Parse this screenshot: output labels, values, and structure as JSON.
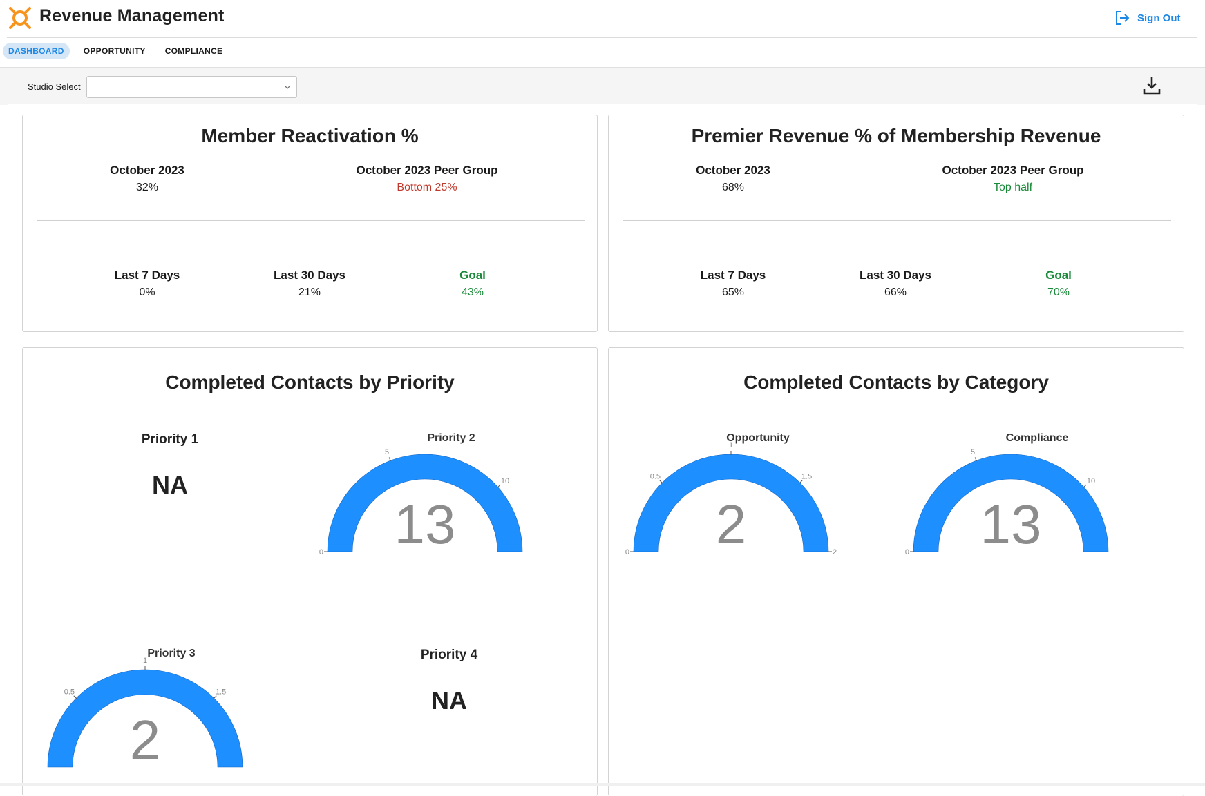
{
  "header": {
    "title": "Revenue Management",
    "sign_out": "Sign Out"
  },
  "tabs": [
    {
      "label": "DASHBOARD",
      "active": true
    },
    {
      "label": "OPPORTUNITY",
      "active": false
    },
    {
      "label": "COMPLIANCE",
      "active": false
    }
  ],
  "toolbar": {
    "studio_label": "Studio Select",
    "studio_value": ""
  },
  "colors": {
    "accent": "#1e88e5",
    "gauge": "#1e8fff",
    "brand": "#f7941d",
    "negative": "#c0392b",
    "positive": "#1a8a3a"
  },
  "reactivation": {
    "title": "Member Reactivation %",
    "month_label": "October 2023",
    "month_value": "32%",
    "peer_label": "October 2023 Peer Group",
    "peer_value": "Bottom 25%",
    "last7_label": "Last 7 Days",
    "last7_value": "0%",
    "last30_label": "Last 30 Days",
    "last30_value": "21%",
    "goal_label": "Goal",
    "goal_value": "43%"
  },
  "premier": {
    "title": "Premier Revenue % of Membership Revenue",
    "month_label": "October 2023",
    "month_value": "68%",
    "peer_label": "October 2023 Peer Group",
    "peer_value": "Top half",
    "last7_label": "Last 7 Days",
    "last7_value": "65%",
    "last30_label": "Last 30 Days",
    "last30_value": "66%",
    "goal_label": "Goal",
    "goal_value": "70%"
  },
  "priority": {
    "title": "Completed Contacts by Priority",
    "p1": {
      "label": "Priority 1",
      "value": "NA"
    },
    "p2": {
      "label": "Priority 2",
      "value": 13,
      "max": 13,
      "ticks": [
        "0",
        "5",
        "10"
      ]
    },
    "p3": {
      "label": "Priority 3",
      "value": 2,
      "max": 2,
      "ticks": [
        "0.5",
        "1",
        "1.5"
      ]
    },
    "p4": {
      "label": "Priority 4",
      "value": "NA"
    }
  },
  "category": {
    "title": "Completed Contacts by Category",
    "opportunity": {
      "label": "Opportunity",
      "value": 2,
      "max": 2,
      "ticks": [
        "0",
        "0.5",
        "1",
        "1.5",
        "2"
      ]
    },
    "compliance": {
      "label": "Compliance",
      "value": 13,
      "max": 13,
      "ticks": [
        "0",
        "5",
        "10"
      ]
    }
  }
}
